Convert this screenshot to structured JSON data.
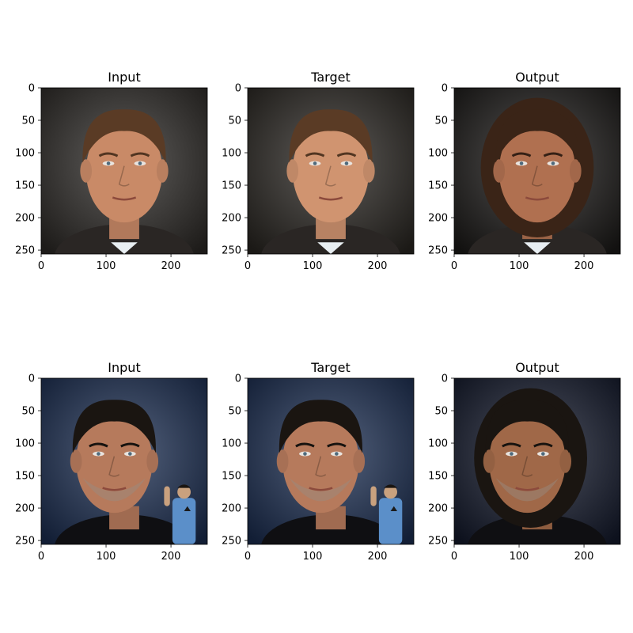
{
  "chart_data": [
    {
      "type": "image",
      "title": "Input",
      "xticks": [
        0,
        100,
        200
      ],
      "yticks": [
        0,
        50,
        100,
        150,
        200,
        250
      ],
      "xlim": [
        0,
        256
      ],
      "ylim": [
        256,
        0
      ],
      "image": {
        "subject": "man with short brown hair",
        "skin": "#c98a67",
        "background": "#2c2a27"
      }
    },
    {
      "type": "image",
      "title": "Target",
      "xticks": [
        0,
        100,
        200
      ],
      "yticks": [
        0,
        50,
        100,
        150,
        200,
        250
      ],
      "xlim": [
        0,
        256
      ],
      "ylim": [
        256,
        0
      ],
      "image": {
        "subject": "man with short brown hair",
        "skin": "#d09470",
        "background": "#2a2622"
      }
    },
    {
      "type": "image",
      "title": "Output",
      "xticks": [
        0,
        100,
        200
      ],
      "yticks": [
        0,
        50,
        100,
        150,
        200,
        250
      ],
      "xlim": [
        0,
        256
      ],
      "ylim": [
        256,
        0
      ],
      "image": {
        "subject": "man with longer dark hair",
        "skin": "#b07050",
        "background": "#1c1a18"
      }
    },
    {
      "type": "image",
      "title": "Input",
      "xticks": [
        0,
        100,
        200
      ],
      "yticks": [
        0,
        50,
        100,
        150,
        200,
        250
      ],
      "xlim": [
        0,
        256
      ],
      "ylim": [
        256,
        0
      ],
      "image": {
        "subject": "older man with figurine in blue shirt",
        "skin": "#b67a5c",
        "background": "#1b2e52"
      }
    },
    {
      "type": "image",
      "title": "Target",
      "xticks": [
        0,
        100,
        200
      ],
      "yticks": [
        0,
        50,
        100,
        150,
        200,
        250
      ],
      "xlim": [
        0,
        256
      ],
      "ylim": [
        256,
        0
      ],
      "image": {
        "subject": "older man with figurine in blue shirt",
        "skin": "#b67a5c",
        "background": "#1b2e52"
      }
    },
    {
      "type": "image",
      "title": "Output",
      "xticks": [
        0,
        100,
        200
      ],
      "yticks": [
        0,
        50,
        100,
        150,
        200,
        250
      ],
      "xlim": [
        0,
        256
      ],
      "ylim": [
        256,
        0
      ],
      "image": {
        "subject": "man with long dark hair",
        "skin": "#a06848",
        "background": "#141a2c"
      }
    }
  ]
}
